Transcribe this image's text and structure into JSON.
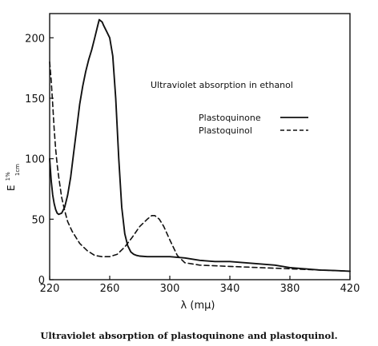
{
  "chart_data": {
    "type": "line",
    "title": "Ultraviolet absorption in ethanol",
    "caption": "Ultraviolet absorption of plastoquinone and plastoquinol.",
    "xlabel": "λ (mμ)",
    "ylabel": {
      "main": "E",
      "sup": "1%",
      "sub": "1cm"
    },
    "xlim": [
      220,
      420
    ],
    "ylim": [
      0,
      220
    ],
    "x_ticks": [
      220,
      260,
      300,
      340,
      380,
      420
    ],
    "y_ticks": [
      0,
      50,
      100,
      150,
      200
    ],
    "grid": false,
    "legend_position": "right",
    "series": [
      {
        "name": "Plastoquinone",
        "style": "solid",
        "x": [
          220,
          221,
          222,
          223,
          224,
          225,
          226,
          228,
          230,
          232,
          234,
          236,
          238,
          240,
          242,
          244,
          246,
          248,
          250,
          252,
          253,
          254,
          255,
          256,
          258,
          260,
          262,
          264,
          266,
          268,
          270,
          272,
          274,
          276,
          278,
          280,
          285,
          290,
          300,
          310,
          320,
          330,
          340,
          350,
          360,
          370,
          380,
          390,
          400,
          410,
          420
        ],
        "y": [
          100,
          82,
          70,
          63,
          58,
          55,
          54,
          55,
          60,
          70,
          85,
          105,
          125,
          145,
          160,
          172,
          182,
          190,
          200,
          210,
          215,
          214,
          213,
          210,
          205,
          200,
          185,
          150,
          100,
          60,
          38,
          28,
          23,
          21,
          20,
          19.5,
          19,
          19,
          19,
          18,
          16,
          15,
          15,
          14,
          13,
          12,
          10,
          9,
          8,
          7.5,
          7
        ]
      },
      {
        "name": "Plastoquinol",
        "style": "dashed",
        "x": [
          220,
          221,
          222,
          223,
          224,
          225,
          226,
          228,
          230,
          232,
          235,
          240,
          245,
          250,
          255,
          260,
          265,
          270,
          275,
          280,
          285,
          288,
          290,
          293,
          296,
          300,
          305,
          310,
          320,
          340,
          360,
          380,
          400,
          420
        ],
        "y": [
          180,
          165,
          145,
          125,
          108,
          95,
          85,
          68,
          57,
          48,
          40,
          30,
          24,
          20,
          19,
          19,
          21,
          27,
          35,
          44,
          50,
          53,
          53,
          50,
          44,
          33,
          20,
          14,
          12,
          11,
          10,
          9,
          8,
          7
        ]
      }
    ]
  }
}
